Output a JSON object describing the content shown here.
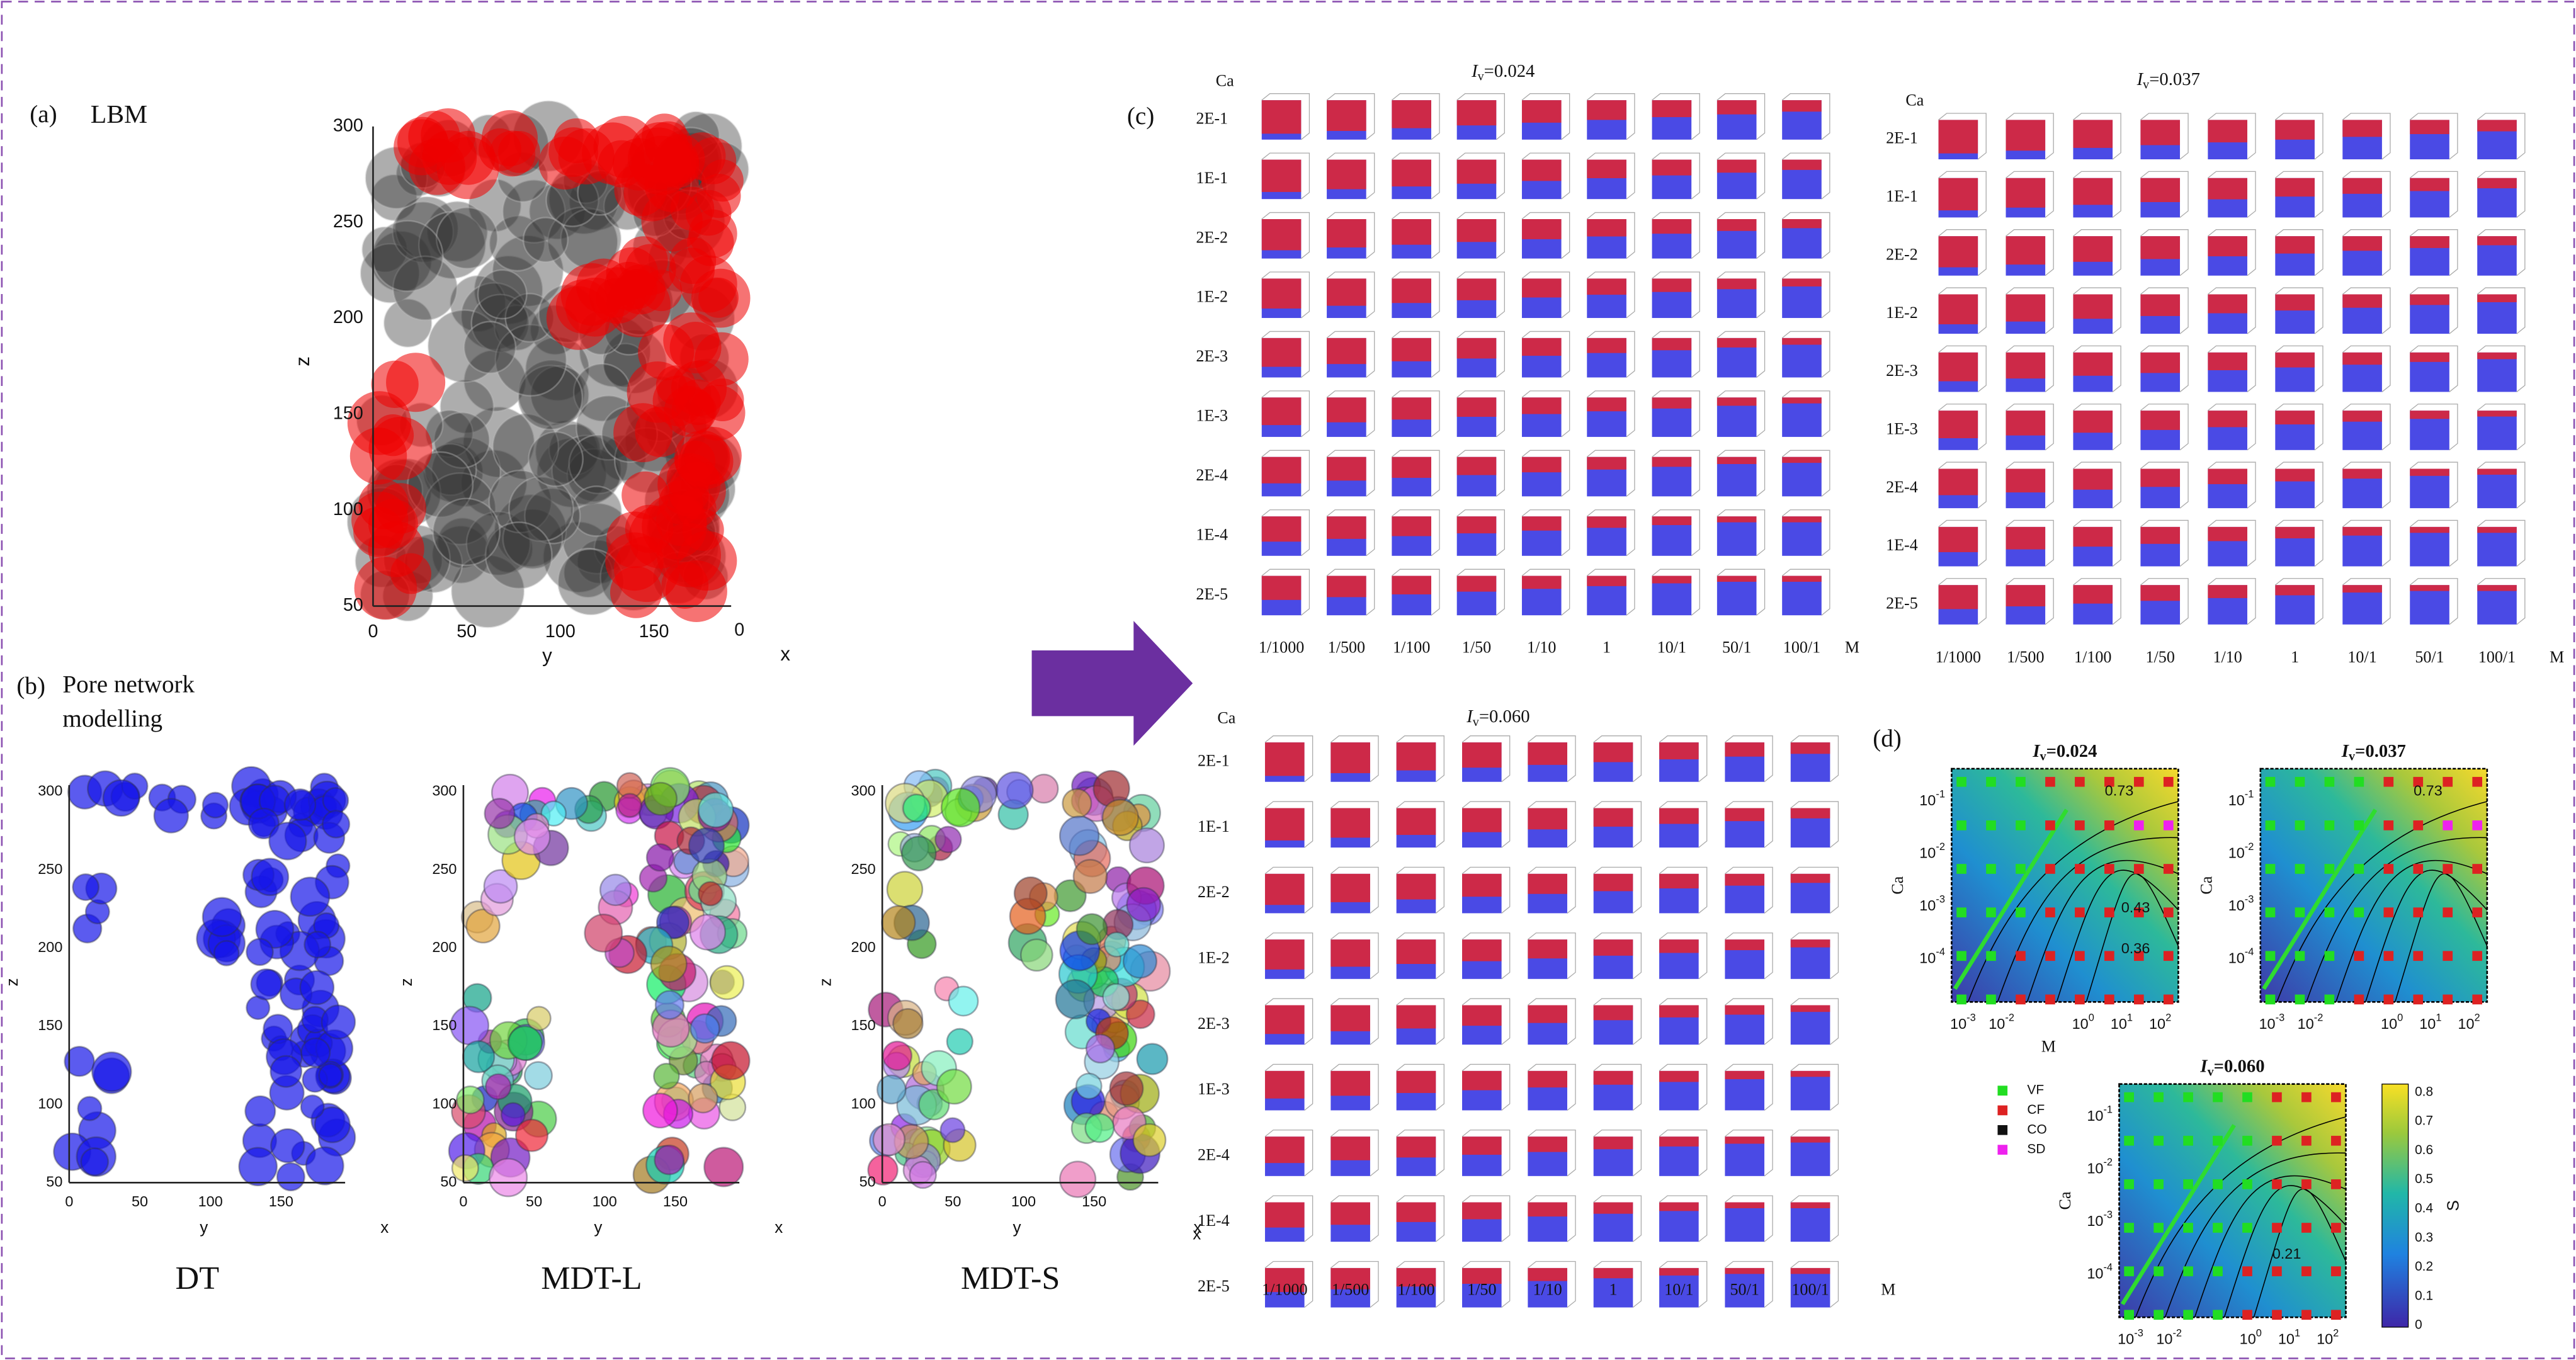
{
  "panel_a": {
    "label": "(a)",
    "title": "LBM",
    "axis_labels": {
      "z": "z",
      "y": "y",
      "x": "x"
    },
    "z_ticks": [
      "300",
      "250",
      "200",
      "150",
      "100",
      "50"
    ],
    "y_ticks": [
      "0",
      "50",
      "100",
      "150"
    ],
    "x_ticks": [
      "0"
    ]
  },
  "panel_b": {
    "label": "(b)",
    "title_lines": [
      "Pore network",
      "modelling"
    ],
    "subplots": [
      {
        "name": "DT",
        "z_label": "z",
        "y_label": "y",
        "x_label": "x",
        "z_ticks": [
          "300",
          "250",
          "200",
          "150",
          "100",
          "50"
        ],
        "y_ticks": [
          "0",
          "50",
          "100",
          "150"
        ]
      },
      {
        "name": "MDT-L",
        "z_label": "z",
        "y_label": "y",
        "x_label": "x",
        "z_ticks": [
          "300",
          "250",
          "200",
          "150",
          "100",
          "50"
        ],
        "y_ticks": [
          "0",
          "50",
          "100",
          "150"
        ]
      },
      {
        "name": "MDT-S",
        "z_label": "z",
        "y_label": "y",
        "x_label": "x",
        "z_ticks": [
          "300",
          "250",
          "200",
          "150",
          "100",
          "50"
        ],
        "y_ticks": [
          "0",
          "50",
          "100",
          "150"
        ]
      }
    ]
  },
  "panel_c": {
    "label": "(c)",
    "grids": [
      {
        "title": {
          "symbol": "I",
          "subscript": "v",
          "value": "=0.024"
        },
        "row_header": "Ca",
        "rows": [
          "2E-1",
          "1E-1",
          "2E-2",
          "1E-2",
          "2E-3",
          "1E-3",
          "2E-4",
          "1E-4",
          "2E-5"
        ],
        "col_header": "M",
        "cols": [
          "1/1000",
          "1/500",
          "1/100",
          "1/50",
          "1/10",
          "1",
          "10/1",
          "50/1",
          "100/1"
        ]
      },
      {
        "title": {
          "symbol": "I",
          "subscript": "v",
          "value": "=0.037"
        },
        "row_header": "Ca",
        "rows": [
          "2E-1",
          "1E-1",
          "2E-2",
          "1E-2",
          "2E-3",
          "1E-3",
          "2E-4",
          "1E-4",
          "2E-5"
        ],
        "col_header": "M",
        "cols": [
          "1/1000",
          "1/500",
          "1/100",
          "1/50",
          "1/10",
          "1",
          "10/1",
          "50/1",
          "100/1"
        ]
      },
      {
        "title": {
          "symbol": "I",
          "subscript": "v",
          "value": "=0.060"
        },
        "row_header": "Ca",
        "rows": [
          "2E-1",
          "1E-1",
          "2E-2",
          "1E-2",
          "2E-3",
          "1E-3",
          "2E-4",
          "1E-4",
          "2E-5"
        ],
        "col_header": "M",
        "cols": [
          "1/1000",
          "1/500",
          "1/100",
          "1/50",
          "1/10",
          "1",
          "10/1",
          "50/1",
          "100/1"
        ],
        "corner_label": "x"
      }
    ]
  },
  "panel_d": {
    "label": "(d)",
    "plots": [
      {
        "title": {
          "symbol": "I",
          "subscript": "v",
          "value": "=0.024"
        },
        "y_label": "Ca",
        "x_label": "M",
        "yticks": [
          {
            "base": "10",
            "exp": "-1"
          },
          {
            "base": "10",
            "exp": "-2"
          },
          {
            "base": "10",
            "exp": "-3"
          },
          {
            "base": "10",
            "exp": "-4"
          }
        ],
        "xticks": [
          {
            "base": "10",
            "exp": "-3"
          },
          {
            "base": "10",
            "exp": "-2"
          },
          {
            "base": "10",
            "exp": "0"
          },
          {
            "base": "10",
            "exp": "1"
          },
          {
            "base": "10",
            "exp": "2"
          }
        ],
        "contour_labels": [
          "0.73",
          "0.43",
          "0.36"
        ]
      },
      {
        "title": {
          "symbol": "I",
          "subscript": "v",
          "value": "=0.037"
        },
        "y_label": "Ca",
        "yticks": [
          {
            "base": "10",
            "exp": "-1"
          },
          {
            "base": "10",
            "exp": "-2"
          },
          {
            "base": "10",
            "exp": "-3"
          },
          {
            "base": "10",
            "exp": "-4"
          }
        ],
        "xticks": [
          {
            "base": "10",
            "exp": "-3"
          },
          {
            "base": "10",
            "exp": "-2"
          },
          {
            "base": "10",
            "exp": "0"
          },
          {
            "base": "10",
            "exp": "1"
          },
          {
            "base": "10",
            "exp": "2"
          }
        ],
        "contour_labels": [
          "0.73"
        ]
      },
      {
        "title": {
          "symbol": "I",
          "subscript": "v",
          "value": "=0.060"
        },
        "y_label": "Ca",
        "yticks": [
          {
            "base": "10",
            "exp": "-1"
          },
          {
            "base": "10",
            "exp": "-2"
          },
          {
            "base": "10",
            "exp": "-3"
          },
          {
            "base": "10",
            "exp": "-4"
          }
        ],
        "xticks": [
          {
            "base": "10",
            "exp": "-3"
          },
          {
            "base": "10",
            "exp": "-2"
          },
          {
            "base": "10",
            "exp": "0"
          },
          {
            "base": "10",
            "exp": "1"
          },
          {
            "base": "10",
            "exp": "2"
          }
        ],
        "contour_labels": [
          "0.21"
        ]
      }
    ],
    "legend": [
      {
        "name": "VF",
        "color": "#22dd22"
      },
      {
        "name": "CF",
        "color": "#dd2222"
      },
      {
        "name": "CO",
        "color": "#111111"
      },
      {
        "name": "SD",
        "color": "#ee22ee"
      }
    ],
    "colorbar": {
      "label": "S",
      "ticks": [
        "0",
        "0.1",
        "0.2",
        "0.3",
        "0.4",
        "0.5",
        "0.6",
        "0.7",
        "0.8"
      ]
    }
  }
}
